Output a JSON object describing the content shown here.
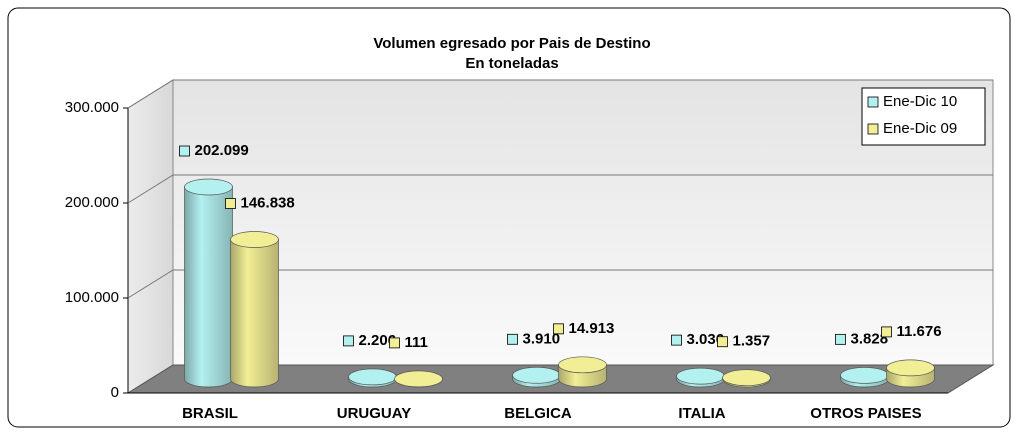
{
  "chart_data": {
    "type": "bar3d",
    "title": "Volumen egresado por Pais de Destino",
    "subtitle": "En toneladas",
    "categories": [
      "BRASIL",
      "URUGUAY",
      "BELGICA",
      "ITALIA",
      "OTROS PAISES"
    ],
    "series": [
      {
        "name": "Ene-Dic 10",
        "color": "#b3f0f0",
        "values": [
          202099,
          2206,
          3910,
          3036,
          3828
        ],
        "value_labels": [
          "202.099",
          "2.206",
          "3.910",
          "3.036",
          "3.828"
        ]
      },
      {
        "name": "Ene-Dic 09",
        "color": "#f2ee96",
        "values": [
          146838,
          111,
          14913,
          1357,
          11676
        ],
        "value_labels": [
          "146.838",
          "111",
          "14.913",
          "1.357",
          "11.676"
        ]
      }
    ],
    "ylim": [
      0,
      300000
    ],
    "yticks": [
      0,
      {
        "value": 100000,
        "label": "100.000"
      },
      {
        "value": 200000,
        "label": "200.000"
      },
      {
        "value": 300000,
        "label": "300.000"
      }
    ],
    "grid": true,
    "legend": "top-right"
  }
}
